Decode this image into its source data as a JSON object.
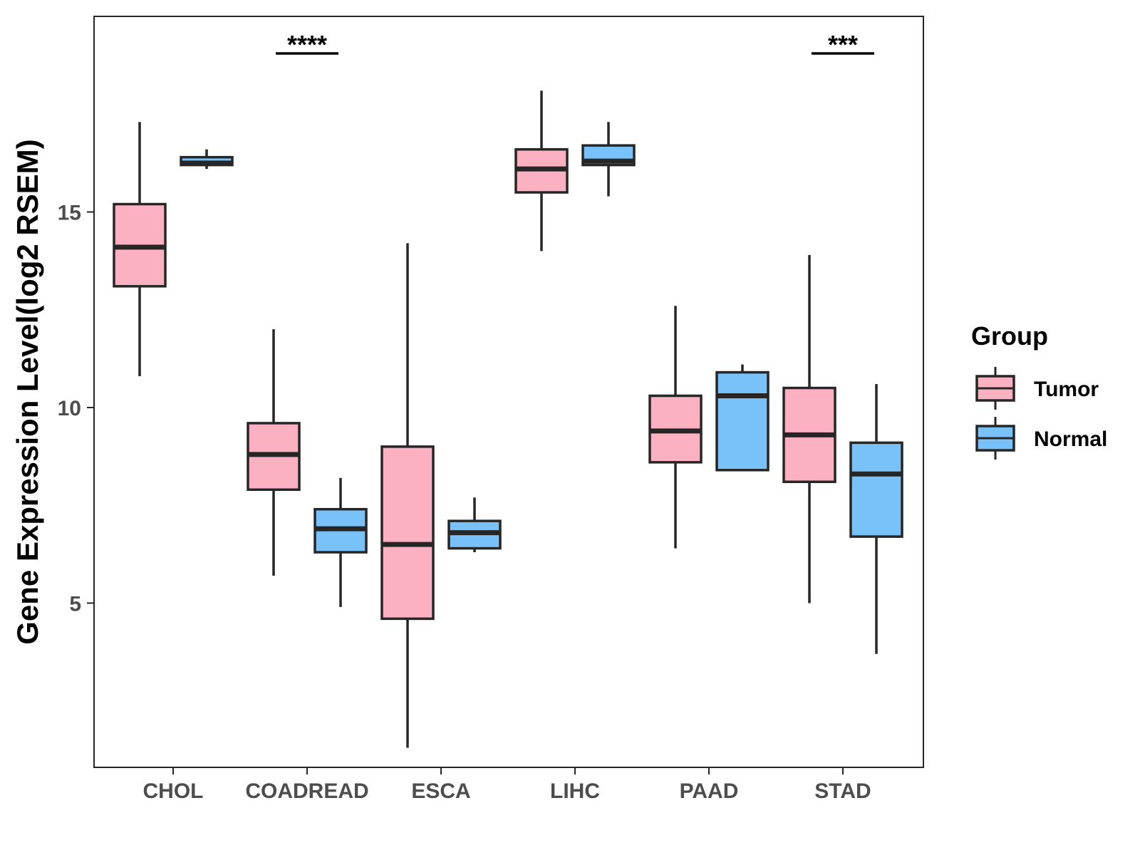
{
  "chart_data": {
    "type": "boxplot",
    "title": "",
    "xlabel": "",
    "ylabel": "Gene Expression Level(log2 RSEM)",
    "ylim": [
      0.8,
      20.0
    ],
    "yticks": [
      5,
      10,
      15
    ],
    "ytick_labels": [
      "5",
      "10",
      "15"
    ],
    "categories": [
      "CHOL",
      "COADREAD",
      "ESCA",
      "LIHC",
      "PAAD",
      "STAD"
    ],
    "series": [
      {
        "name": "Tumor",
        "color": "#FCB1C3",
        "boxes": [
          {
            "min": 10.8,
            "q1": 13.1,
            "median": 14.1,
            "q3": 15.2,
            "max": 17.3
          },
          {
            "min": 5.7,
            "q1": 7.9,
            "median": 8.8,
            "q3": 9.6,
            "max": 12.0
          },
          {
            "min": 1.3,
            "q1": 4.6,
            "median": 6.5,
            "q3": 9.0,
            "max": 14.2
          },
          {
            "min": 14.0,
            "q1": 15.5,
            "median": 16.1,
            "q3": 16.6,
            "max": 18.1
          },
          {
            "min": 6.4,
            "q1": 8.6,
            "median": 9.4,
            "q3": 10.3,
            "max": 12.6
          },
          {
            "min": 5.0,
            "q1": 8.1,
            "median": 9.3,
            "q3": 10.5,
            "max": 13.9
          }
        ]
      },
      {
        "name": "Normal",
        "color": "#78C2F9",
        "boxes": [
          {
            "min": 16.1,
            "q1": 16.2,
            "median": 16.25,
            "q3": 16.4,
            "max": 16.6
          },
          {
            "min": 4.9,
            "q1": 6.3,
            "median": 6.9,
            "q3": 7.4,
            "max": 8.2
          },
          {
            "min": 6.3,
            "q1": 6.4,
            "median": 6.8,
            "q3": 7.1,
            "max": 7.7
          },
          {
            "min": 15.4,
            "q1": 16.2,
            "median": 16.3,
            "q3": 16.7,
            "max": 17.3
          },
          {
            "min": 8.4,
            "q1": 8.4,
            "median": 10.3,
            "q3": 10.9,
            "max": 11.1
          },
          {
            "min": 3.7,
            "q1": 6.7,
            "median": 8.3,
            "q3": 9.1,
            "max": 10.6
          }
        ]
      }
    ],
    "significance": [
      {
        "category": "COADREAD",
        "label": "****"
      },
      {
        "category": "STAD",
        "label": "***"
      }
    ],
    "legend": {
      "title": "Group",
      "position": "right",
      "entries": [
        "Tumor",
        "Normal"
      ]
    },
    "box_outline_color": "#262626",
    "axis_color": "#262626",
    "tick_label_color": "#4d4d4d",
    "grid": false
  }
}
